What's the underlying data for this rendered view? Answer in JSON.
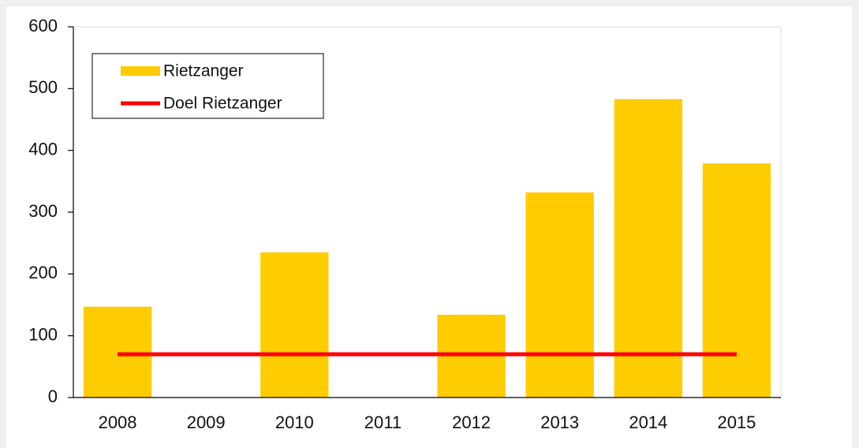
{
  "chart_data": {
    "type": "bar",
    "categories": [
      "2008",
      "2009",
      "2010",
      "2011",
      "2012",
      "2013",
      "2014",
      "2015"
    ],
    "series": [
      {
        "name": "Rietzanger",
        "type": "bar",
        "color": "#ffcc00",
        "values": [
          147,
          0,
          235,
          0,
          134,
          332,
          483,
          379
        ]
      },
      {
        "name": "Doel Rietzanger",
        "type": "line",
        "color": "#ff0000",
        "values": [
          70,
          70,
          70,
          70,
          70,
          70,
          70,
          70
        ]
      }
    ],
    "ylim": [
      0,
      600
    ],
    "yticks": [
      0,
      100,
      200,
      300,
      400,
      500,
      600
    ],
    "legend": "upper left"
  }
}
